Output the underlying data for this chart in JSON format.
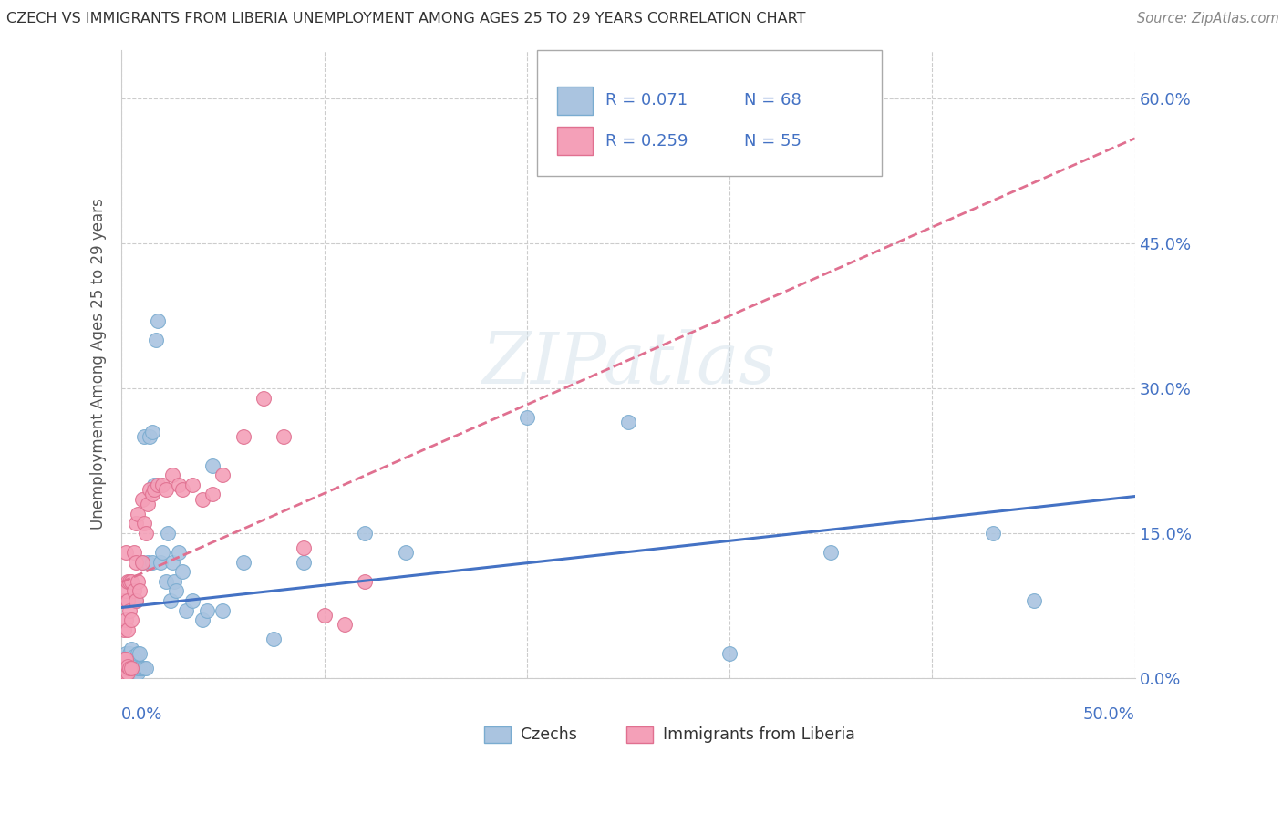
{
  "title": "CZECH VS IMMIGRANTS FROM LIBERIA UNEMPLOYMENT AMONG AGES 25 TO 29 YEARS CORRELATION CHART",
  "source": "Source: ZipAtlas.com",
  "ylabel": "Unemployment Among Ages 25 to 29 years",
  "xlim": [
    0.0,
    0.5
  ],
  "ylim": [
    0.0,
    0.65
  ],
  "ytick_labels": [
    "0.0%",
    "15.0%",
    "30.0%",
    "45.0%",
    "60.0%"
  ],
  "ytick_values": [
    0.0,
    0.15,
    0.3,
    0.45,
    0.6
  ],
  "legend_label1": "Czechs",
  "legend_label2": "Immigrants from Liberia",
  "legend_R1": "R = 0.071",
  "legend_N1": "N = 68",
  "legend_R2": "R = 0.259",
  "legend_N2": "N = 55",
  "color_czech": "#aac4e0",
  "color_liberia": "#f4a0b8",
  "color_czech_edge": "#7aacd0",
  "color_liberia_edge": "#e07090",
  "color_czech_line": "#4472c4",
  "color_liberia_line": "#e07090",
  "watermark": "ZIPatlas",
  "legend_text_color": "#4472c4",
  "czech_R": 0.071,
  "liberia_R": 0.259,
  "czech_points_x": [
    0.001,
    0.001,
    0.001,
    0.002,
    0.002,
    0.002,
    0.002,
    0.003,
    0.003,
    0.003,
    0.004,
    0.004,
    0.004,
    0.005,
    0.005,
    0.005,
    0.005,
    0.006,
    0.006,
    0.006,
    0.007,
    0.007,
    0.007,
    0.007,
    0.008,
    0.008,
    0.008,
    0.009,
    0.009,
    0.01,
    0.01,
    0.011,
    0.011,
    0.012,
    0.013,
    0.014,
    0.015,
    0.015,
    0.016,
    0.017,
    0.018,
    0.019,
    0.02,
    0.022,
    0.023,
    0.024,
    0.025,
    0.026,
    0.027,
    0.028,
    0.03,
    0.032,
    0.035,
    0.04,
    0.042,
    0.045,
    0.05,
    0.06,
    0.075,
    0.09,
    0.12,
    0.14,
    0.2,
    0.25,
    0.3,
    0.35,
    0.43,
    0.45
  ],
  "czech_points_y": [
    0.005,
    0.01,
    0.02,
    0.005,
    0.01,
    0.015,
    0.025,
    0.005,
    0.01,
    0.02,
    0.005,
    0.015,
    0.025,
    0.005,
    0.01,
    0.02,
    0.03,
    0.005,
    0.012,
    0.022,
    0.005,
    0.01,
    0.02,
    0.08,
    0.005,
    0.01,
    0.025,
    0.01,
    0.025,
    0.01,
    0.12,
    0.25,
    0.01,
    0.01,
    0.12,
    0.25,
    0.12,
    0.255,
    0.2,
    0.35,
    0.37,
    0.12,
    0.13,
    0.1,
    0.15,
    0.08,
    0.12,
    0.1,
    0.09,
    0.13,
    0.11,
    0.07,
    0.08,
    0.06,
    0.07,
    0.22,
    0.07,
    0.12,
    0.04,
    0.12,
    0.15,
    0.13,
    0.27,
    0.265,
    0.025,
    0.13,
    0.15,
    0.08
  ],
  "liberia_points_x": [
    0.001,
    0.001,
    0.001,
    0.001,
    0.001,
    0.002,
    0.002,
    0.002,
    0.002,
    0.002,
    0.002,
    0.003,
    0.003,
    0.003,
    0.003,
    0.003,
    0.004,
    0.004,
    0.004,
    0.005,
    0.005,
    0.005,
    0.006,
    0.006,
    0.007,
    0.007,
    0.007,
    0.008,
    0.008,
    0.009,
    0.01,
    0.01,
    0.011,
    0.012,
    0.013,
    0.014,
    0.015,
    0.016,
    0.018,
    0.02,
    0.022,
    0.025,
    0.028,
    0.03,
    0.035,
    0.04,
    0.045,
    0.05,
    0.06,
    0.07,
    0.08,
    0.09,
    0.1,
    0.11,
    0.12
  ],
  "liberia_points_y": [
    0.005,
    0.01,
    0.02,
    0.05,
    0.08,
    0.005,
    0.01,
    0.02,
    0.06,
    0.09,
    0.13,
    0.005,
    0.012,
    0.05,
    0.08,
    0.1,
    0.01,
    0.07,
    0.1,
    0.01,
    0.06,
    0.1,
    0.09,
    0.13,
    0.08,
    0.12,
    0.16,
    0.1,
    0.17,
    0.09,
    0.12,
    0.185,
    0.16,
    0.15,
    0.18,
    0.195,
    0.19,
    0.195,
    0.2,
    0.2,
    0.195,
    0.21,
    0.2,
    0.195,
    0.2,
    0.185,
    0.19,
    0.21,
    0.25,
    0.29,
    0.25,
    0.135,
    0.065,
    0.055,
    0.1
  ]
}
